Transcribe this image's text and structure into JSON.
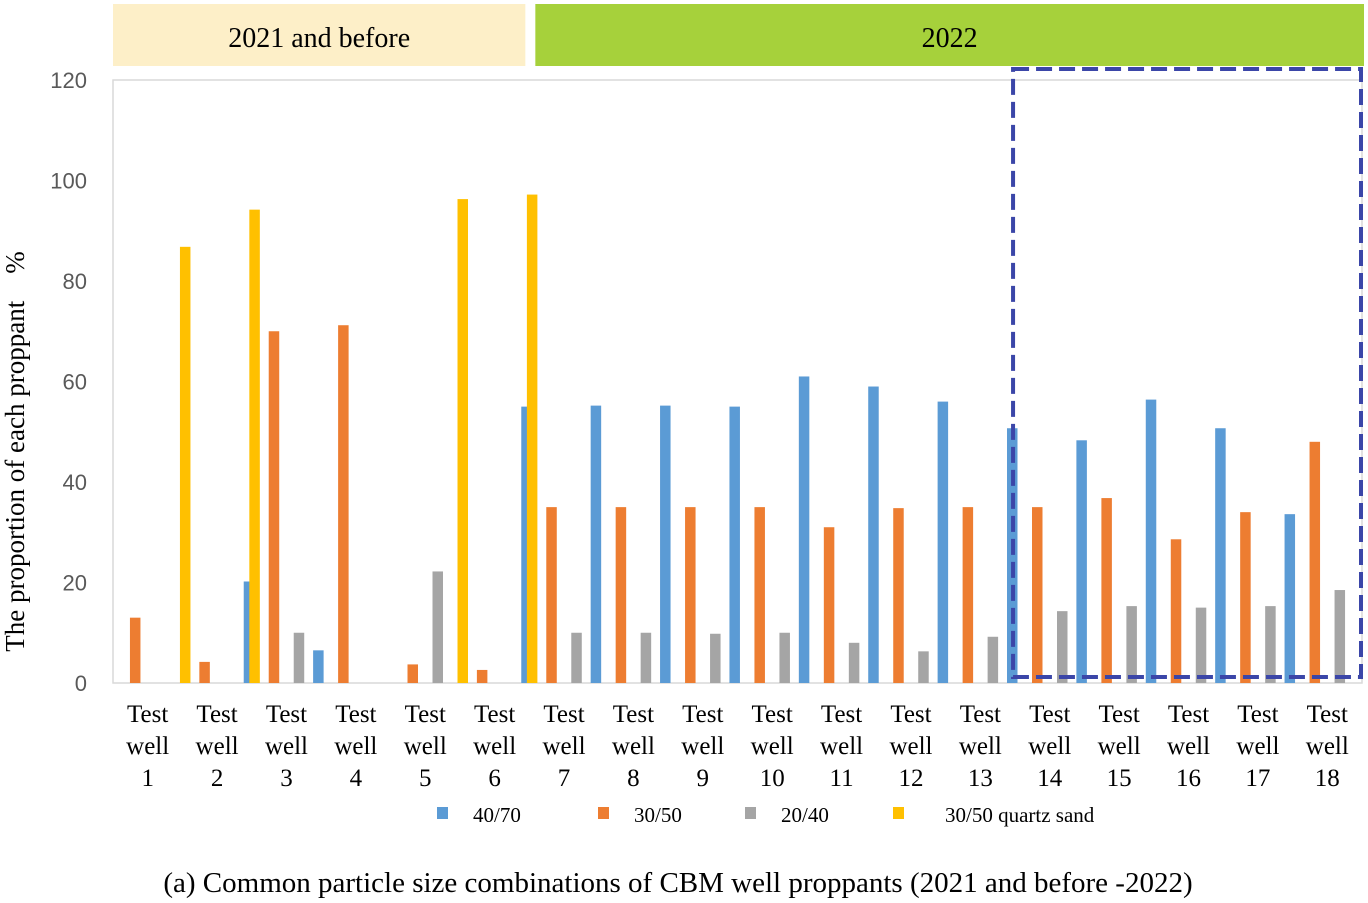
{
  "chart_data": {
    "type": "bar",
    "title": "",
    "caption": "(a) Common particle size combinations of CBM well proppants (2021 and before -2022)",
    "ylabel": "The proportion of each proppant    %",
    "xlabel": "",
    "ylim": [
      0,
      120
    ],
    "yticks": [
      0,
      20,
      40,
      60,
      80,
      100,
      120
    ],
    "grid": false,
    "legend_position": "bottom",
    "period_headers": [
      {
        "label": "2021 and before",
        "wells_from": 1,
        "wells_to": 6,
        "color": "#fdefc8"
      },
      {
        "label": "2022",
        "wells_from": 7,
        "wells_to": 18,
        "color": "#a6d13b"
      }
    ],
    "highlight_box": {
      "wells_from": 14,
      "wells_to": 18,
      "style": "dashed",
      "color": "#3b46a8"
    },
    "categories": [
      [
        "Test",
        "well",
        "1"
      ],
      [
        "Test",
        "well",
        "2"
      ],
      [
        "Test",
        "well",
        "3"
      ],
      [
        "Test",
        "well",
        "4"
      ],
      [
        "Test",
        "well",
        "5"
      ],
      [
        "Test",
        "well",
        "6"
      ],
      [
        "Test",
        "well",
        "7"
      ],
      [
        "Test",
        "well",
        "8"
      ],
      [
        "Test",
        "well",
        "9"
      ],
      [
        "Test",
        "well",
        "10"
      ],
      [
        "Test",
        "well",
        "11"
      ],
      [
        "Test",
        "well",
        "12"
      ],
      [
        "Test",
        "well",
        "13"
      ],
      [
        "Test",
        "well",
        "14"
      ],
      [
        "Test",
        "well",
        "15"
      ],
      [
        "Test",
        "well",
        "16"
      ],
      [
        "Test",
        "well",
        "17"
      ],
      [
        "Test",
        "well",
        "18"
      ]
    ],
    "series": [
      {
        "name": "40/70",
        "color": "#5b9bd5",
        "values": [
          0,
          0,
          20.2,
          6.5,
          0,
          0,
          55,
          55.2,
          55.2,
          55,
          61,
          59,
          56,
          50.7,
          48.3,
          56.4,
          50.7,
          33.6
        ]
      },
      {
        "name": "30/50",
        "color": "#ed7d31",
        "values": [
          13,
          4.2,
          70,
          71.2,
          3.7,
          2.6,
          35,
          35,
          35,
          35,
          31,
          34.8,
          35,
          35,
          36.8,
          28.6,
          34,
          48
        ]
      },
      {
        "name": "20/40",
        "color": "#a5a5a5",
        "values": [
          0,
          0,
          10,
          0,
          22.2,
          0,
          10,
          10,
          9.8,
          10,
          8,
          6.3,
          9.2,
          14.3,
          15.3,
          15,
          15.3,
          18.5
        ]
      },
      {
        "name": "30/50 quartz sand",
        "color": "#ffc000",
        "values": [
          86.8,
          94.2,
          0,
          0,
          96.3,
          97.2,
          0,
          0,
          0,
          0,
          0,
          0,
          0,
          0,
          0,
          0,
          0,
          0
        ]
      }
    ]
  }
}
